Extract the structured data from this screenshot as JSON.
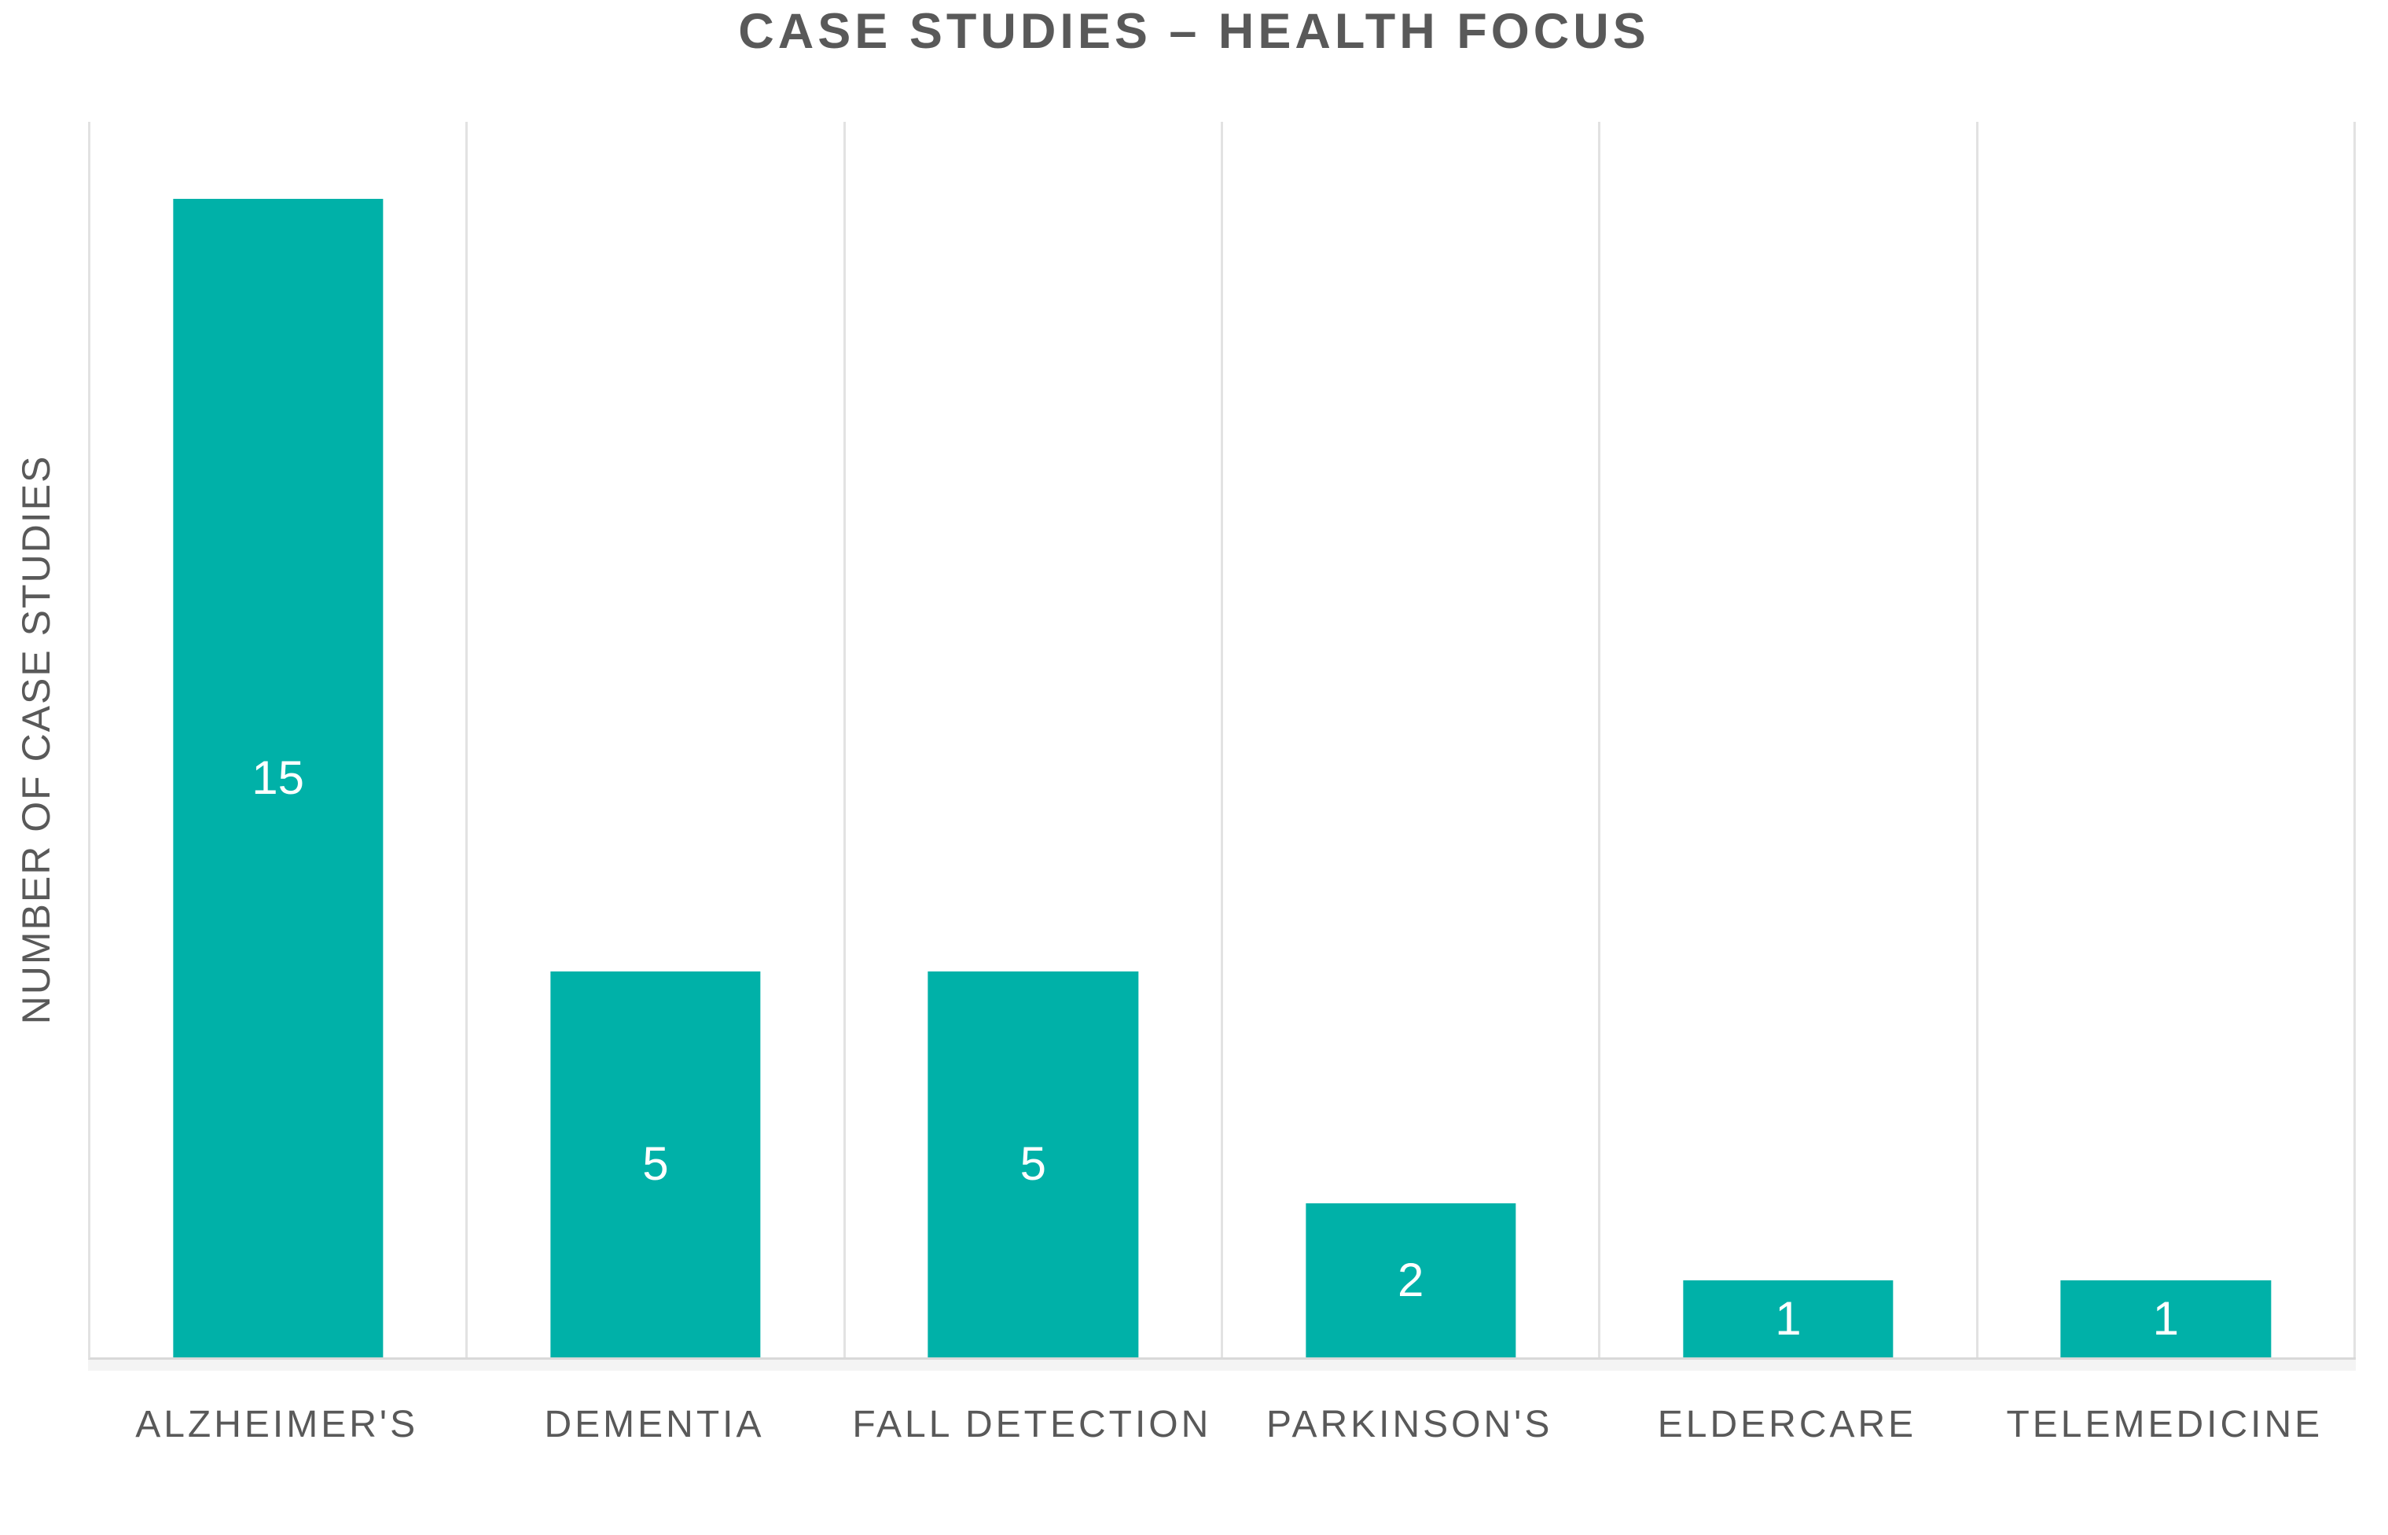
{
  "title": "CASE STUDIES – HEALTH FOCUS",
  "chart_data": {
    "type": "bar",
    "title": "CASE STUDIES – HEALTH FOCUS",
    "categories": [
      "ALZHEIMER'S",
      "DEMENTIA",
      "FALL DETECTION",
      "PARKINSON'S",
      "ELDERCARE",
      "TELEMEDICINE"
    ],
    "values": [
      15,
      5,
      5,
      2,
      1,
      1
    ],
    "xlabel": "",
    "ylabel": "NUMBER OF CASE STUDIES",
    "ylim": [
      0,
      16
    ],
    "y_tick_labels": "none",
    "grid": "vertical category separators only",
    "legend_position": "none",
    "data_labels": {
      "position": "inside-center",
      "color": "#FFFFFF"
    },
    "bar_color": "#00B1A8"
  },
  "colors": {
    "bar": "#00B1A8",
    "title_text": "#595959",
    "axis_text": "#595959",
    "gridline": "#E2E2E2",
    "axis_line": "#D9D9D9",
    "data_label": "#FFFFFF",
    "background": "#FFFFFF"
  }
}
